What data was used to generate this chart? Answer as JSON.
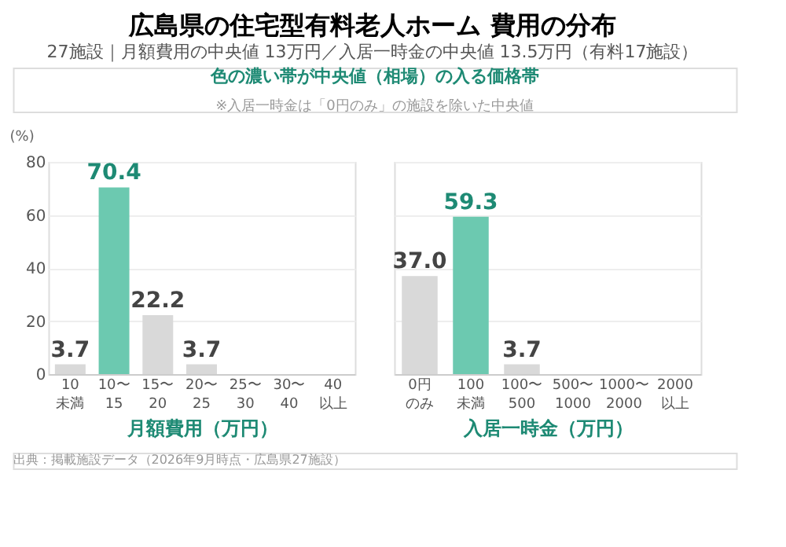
{
  "chart_data": [
    {
      "type": "bar",
      "title": "広島県の住宅型有料老人ホーム 費用の分布",
      "subtitle": "27施設｜月額費用の中央値 13万円／入居一時金の中央値 13.5万円（有料17施設）",
      "annotations": [
        "色の濃い帯が中央値（相場）の入る価格帯",
        "※入居一時金は「0円のみ」の施設を除いた中央値",
        "出典：掲載施設データ（2026年9月時点・広島県27施設）"
      ],
      "xlabel": "月額費用（万円）",
      "ylabel": "(%)",
      "categories": [
        "10未満",
        "10〜15",
        "15〜20",
        "20〜25",
        "25〜30",
        "30〜40",
        "40以上"
      ],
      "values": [
        3.7,
        70.4,
        22.2,
        3.7,
        0,
        0,
        0
      ],
      "colors": [
        "#d9d9d9",
        "#6cc9b0",
        "#d9d9d9",
        "#d9d9d9",
        "#d9d9d9",
        "#d9d9d9",
        "#d9d9d9"
      ],
      "value_labels": [
        "3.7",
        "70.4",
        "22.2",
        "3.7",
        null,
        null,
        null
      ],
      "ylim": [
        0,
        80
      ],
      "yticks": [
        0,
        20,
        40,
        60,
        80
      ],
      "grid": "y"
    },
    {
      "type": "bar",
      "xlabel": "入居一時金（万円）",
      "categories": [
        "0円のみ",
        "100未満",
        "100〜500",
        "500〜1000",
        "1000〜2000",
        "2000以上"
      ],
      "values": [
        37.0,
        59.3,
        3.7,
        0,
        0,
        0
      ],
      "colors": [
        "#d9d9d9",
        "#6cc9b0",
        "#d9d9d9",
        "#d9d9d9",
        "#d9d9d9",
        "#d9d9d9"
      ],
      "value_labels": [
        "37.0",
        "59.3",
        "3.7",
        null,
        null,
        null
      ],
      "ylim": [
        0,
        80
      ],
      "yticks": [
        0,
        20,
        40,
        60,
        80
      ],
      "grid": "y",
      "tick_labels": "x"
    }
  ]
}
